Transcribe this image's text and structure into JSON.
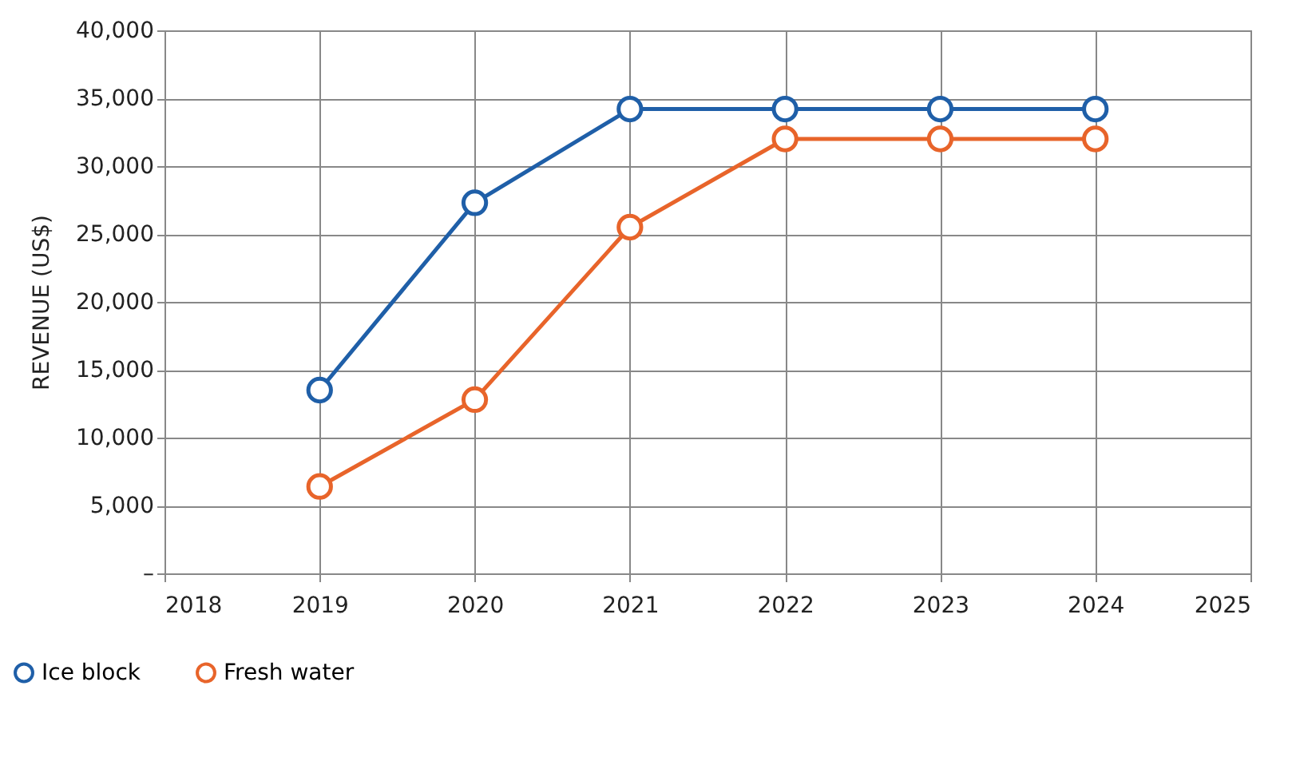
{
  "chart_data": {
    "type": "line",
    "ylabel": "REVENUE (US$)",
    "x": [
      2019,
      2020,
      2021,
      2022,
      2023,
      2024
    ],
    "series": [
      {
        "name": "Ice block",
        "color": "#1f5fa8",
        "values": [
          13500,
          27300,
          34200,
          34200,
          34200,
          34200
        ]
      },
      {
        "name": "Fresh water",
        "color": "#e8642a",
        "values": [
          6400,
          12800,
          25500,
          32000,
          32000,
          32000
        ]
      }
    ],
    "xlim": [
      2018,
      2025
    ],
    "xticks": [
      2018,
      2019,
      2020,
      2021,
      2022,
      2023,
      2024,
      2025
    ],
    "ylim": [
      0,
      40000
    ],
    "yticks": [
      {
        "value": 0,
        "label": "–"
      },
      {
        "value": 5000,
        "label": "5,000"
      },
      {
        "value": 10000,
        "label": "10,000"
      },
      {
        "value": 15000,
        "label": "15,000"
      },
      {
        "value": 20000,
        "label": "20,000"
      },
      {
        "value": 25000,
        "label": "25,000"
      },
      {
        "value": 30000,
        "label": "30,000"
      },
      {
        "value": 35000,
        "label": "35,000"
      },
      {
        "value": 40000,
        "label": "40,000"
      }
    ],
    "grid": true,
    "legend": "bottom left",
    "marker": "circle",
    "line_style": "solid"
  }
}
